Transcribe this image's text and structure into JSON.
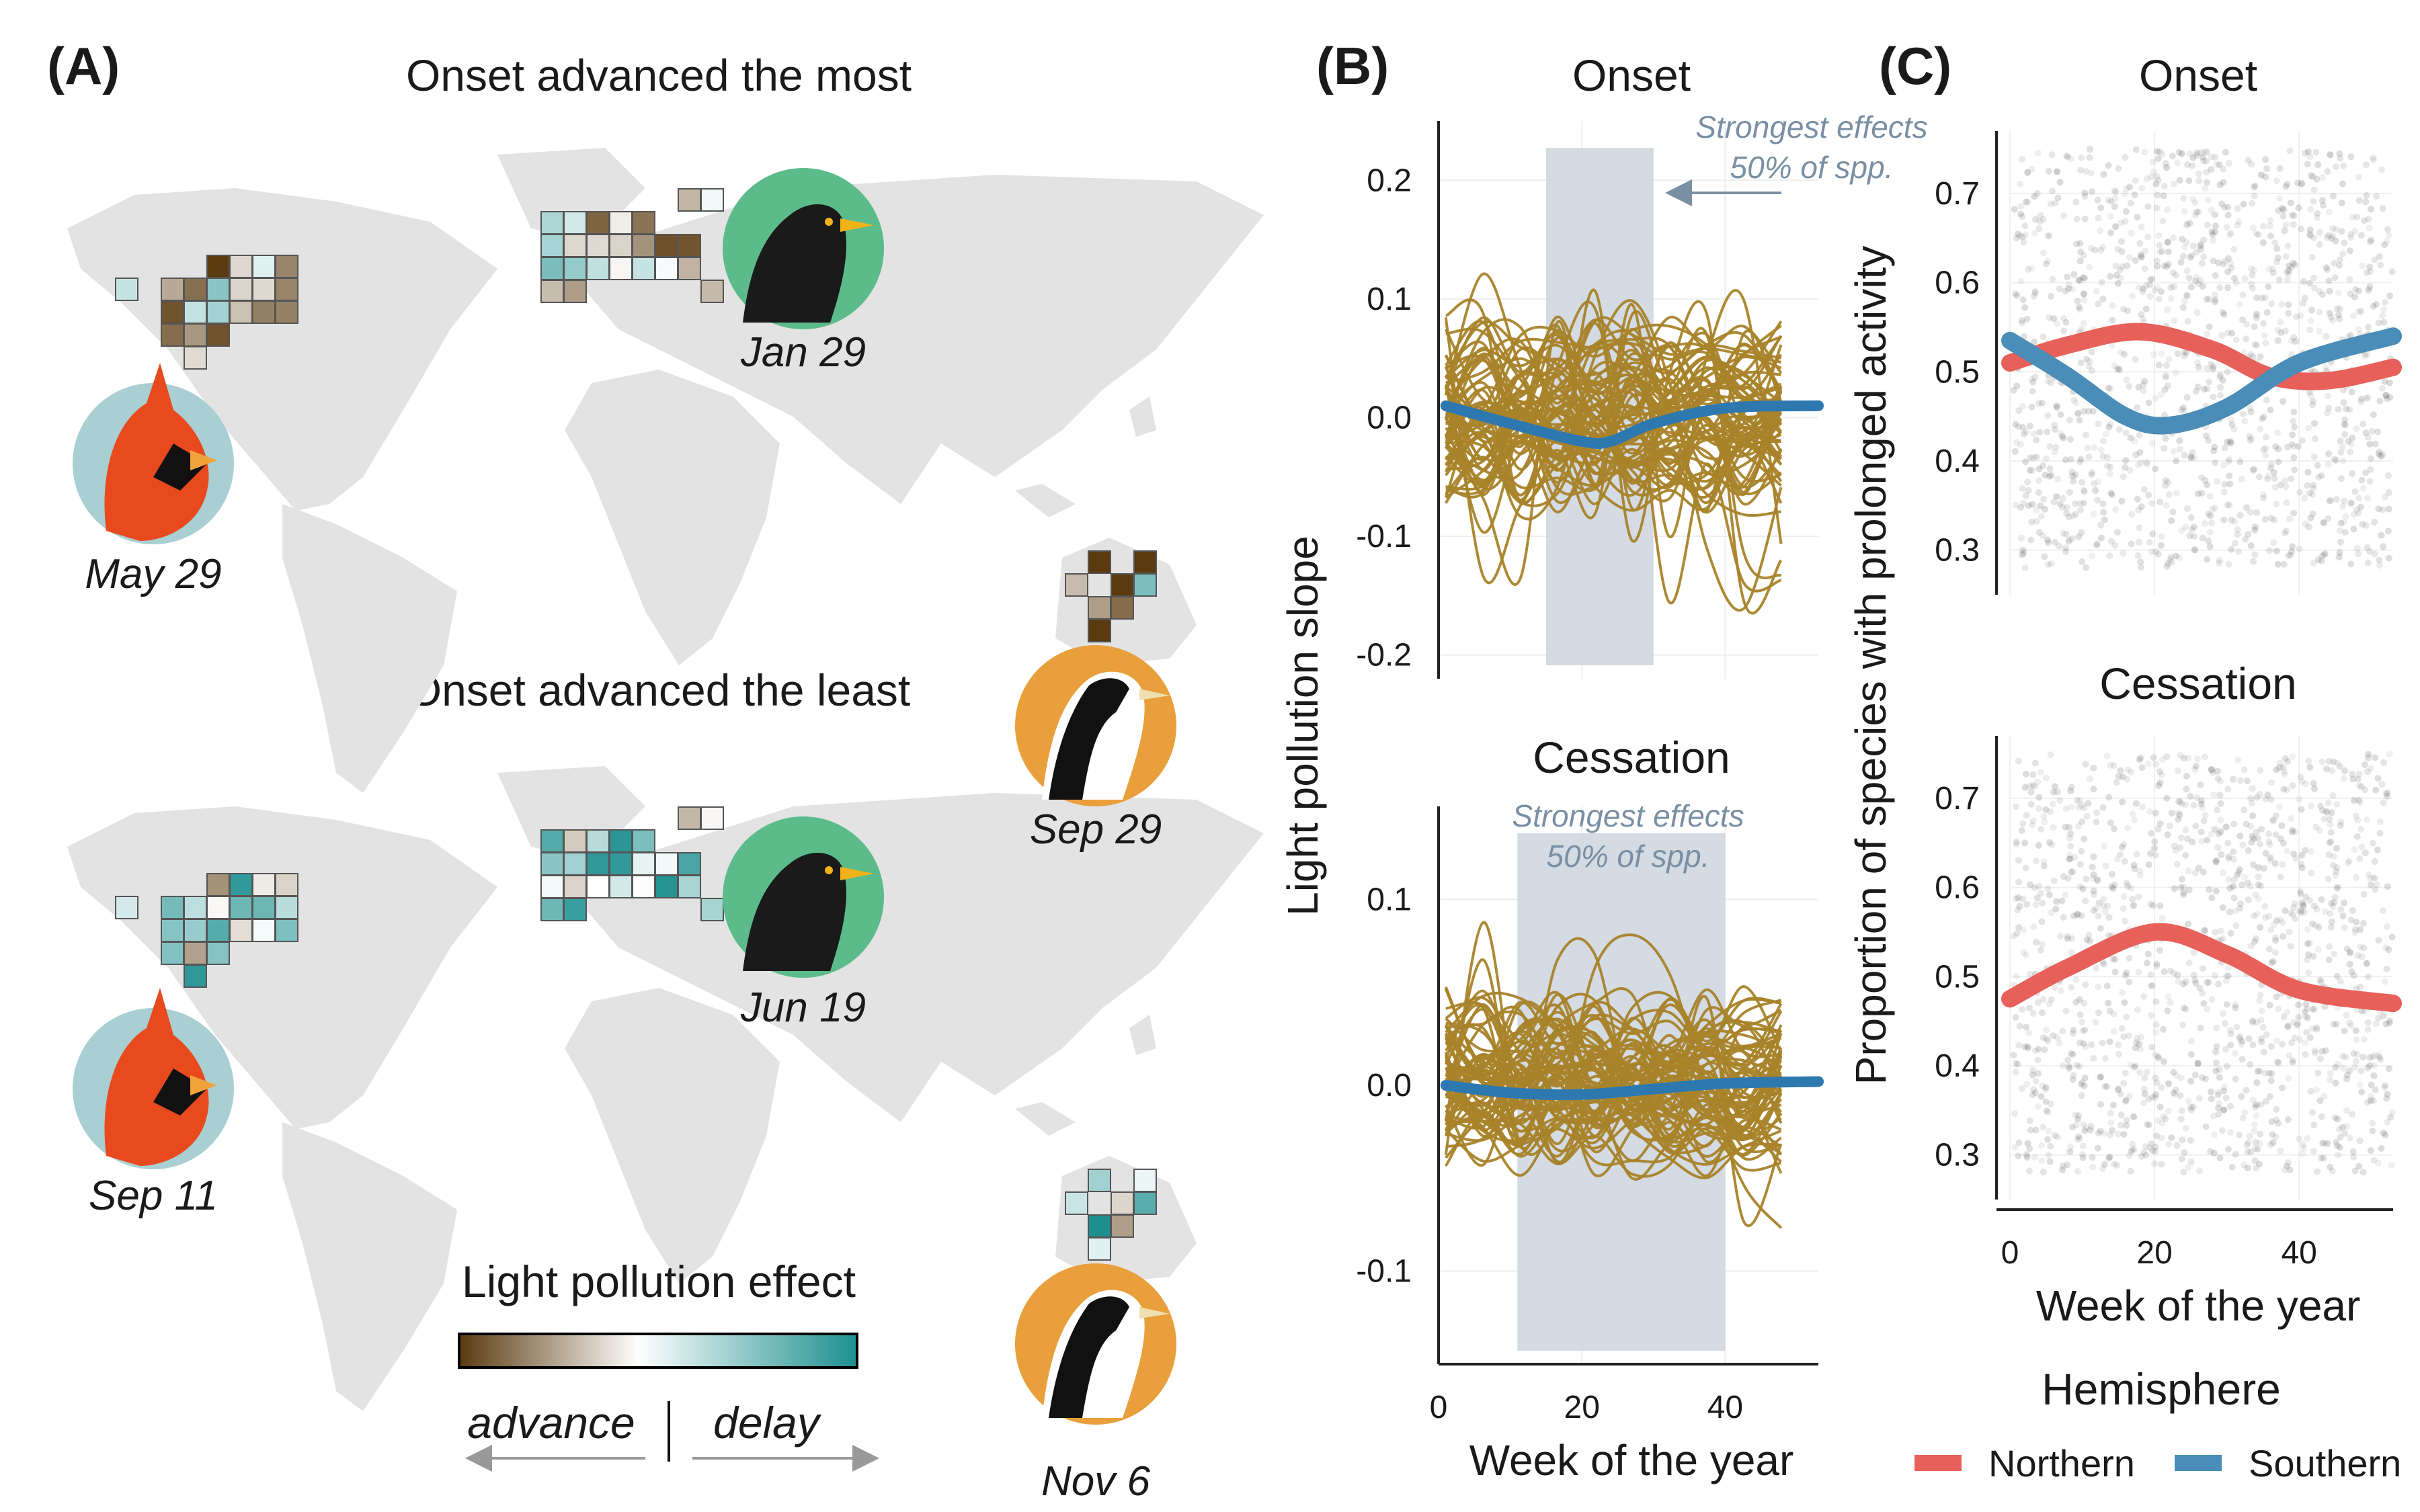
{
  "panel_a": {
    "label": "(A)",
    "top_title": "Onset advanced the most",
    "bottom_title": "Onset advanced the least",
    "top_dates": {
      "cardinal": "May 29",
      "blackbird": "Jan 29",
      "magpie_lark": "Sep 29"
    },
    "bottom_dates": {
      "cardinal": "Sep 11",
      "blackbird": "Jun 19",
      "magpie_lark": "Nov 6"
    },
    "legend_title": "Light pollution effect",
    "legend_left": "advance",
    "legend_right": "delay",
    "colors": {
      "advance": "#5a3a0e",
      "neutral": "#ffffff",
      "delay": "#1d8f8f",
      "land": "#e3e3e3"
    },
    "bird_icons": [
      "cardinal-icon",
      "blackbird-icon",
      "magpie-lark-icon"
    ]
  },
  "chart_data": [
    {
      "type": "line",
      "panel": "(B)",
      "title": "Onset",
      "ylabel": "Light pollution slope",
      "xlim": [
        0,
        53
      ],
      "ylim": [
        -0.22,
        0.25
      ],
      "yticks": [
        "0.2",
        "0.1",
        "0.0",
        "-0.1",
        "-0.2"
      ],
      "note": [
        "Strongest effects",
        "50% of spp."
      ],
      "shaded_weeks": [
        15,
        30
      ],
      "mean_series": {
        "x": [
          1,
          10,
          20,
          24,
          30,
          40,
          53
        ],
        "y": [
          0.01,
          -0.005,
          -0.02,
          -0.02,
          -0.005,
          0.008,
          0.01
        ]
      },
      "colors": {
        "species": "#a8832a",
        "mean": "#2e78b0",
        "shade": "#ccd5de"
      }
    },
    {
      "type": "line",
      "title": "Cessation",
      "xlabel": "Week of the year",
      "xlim": [
        0,
        53
      ],
      "ylim": [
        -0.15,
        0.15
      ],
      "xticks": [
        "0",
        "20",
        "40"
      ],
      "yticks": [
        "0.1",
        "0.0",
        "-0.1"
      ],
      "note": [
        "Strongest effects",
        "50% of spp."
      ],
      "shaded_weeks": [
        11,
        40
      ],
      "mean_series": {
        "x": [
          1,
          10,
          20,
          30,
          40,
          53
        ],
        "y": [
          0.0,
          -0.004,
          -0.005,
          -0.002,
          0.001,
          0.002
        ]
      },
      "colors": {
        "species": "#a8832a",
        "mean": "#2e78b0",
        "shade": "#ccd5de"
      }
    },
    {
      "type": "scatter",
      "panel": "(C)",
      "title": "Onset",
      "ylabel": "Proportion of species with prolonged activity",
      "xlim": [
        0,
        53
      ],
      "ylim": [
        0.25,
        0.77
      ],
      "yticks": [
        "0.7",
        "0.6",
        "0.5",
        "0.4",
        "0.3"
      ],
      "series": [
        {
          "name": "Northern",
          "x": [
            0,
            8,
            18,
            28,
            36,
            44,
            53
          ],
          "y": [
            0.51,
            0.53,
            0.545,
            0.525,
            0.495,
            0.49,
            0.505
          ]
        },
        {
          "name": "Southern",
          "x": [
            0,
            8,
            16,
            22,
            30,
            40,
            53
          ],
          "y": [
            0.535,
            0.495,
            0.45,
            0.44,
            0.46,
            0.51,
            0.54
          ]
        }
      ]
    },
    {
      "type": "scatter",
      "title": "Cessation",
      "xlabel": "Week of the year",
      "xlim": [
        0,
        53
      ],
      "ylim": [
        0.25,
        0.77
      ],
      "xticks": [
        "0",
        "20",
        "40"
      ],
      "yticks": [
        "0.7",
        "0.6",
        "0.5",
        "0.4",
        "0.3"
      ],
      "series": [
        {
          "name": "Northern",
          "x": [
            0,
            8,
            20,
            30,
            40,
            53
          ],
          "y": [
            0.475,
            0.51,
            0.55,
            0.525,
            0.485,
            0.47
          ]
        }
      ]
    }
  ],
  "legend": {
    "title": "Hemisphere",
    "items": [
      {
        "name": "Northern",
        "color": "#e8605a"
      },
      {
        "name": "Southern",
        "color": "#4a8db8"
      }
    ]
  }
}
